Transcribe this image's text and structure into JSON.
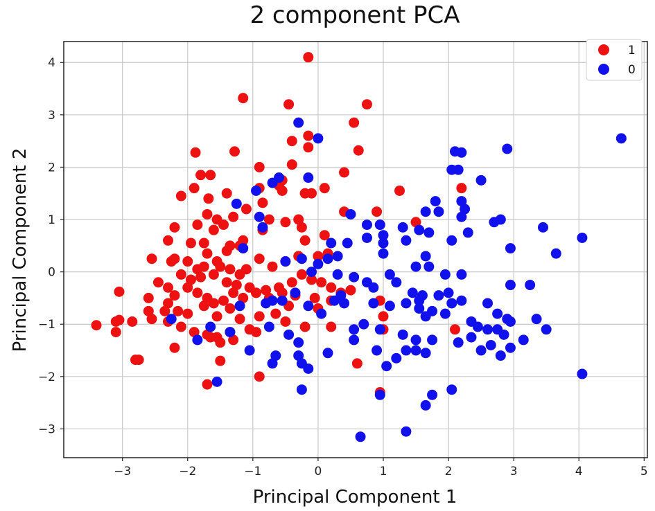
{
  "chart_data": {
    "type": "scatter",
    "title": "2 component PCA",
    "xlabel": "Principal Component 1",
    "ylabel": "Principal Component 2",
    "xlim": [
      -3.9,
      5.05
    ],
    "ylim": [
      -3.55,
      4.4
    ],
    "xticks": [
      -3,
      -2,
      -1,
      0,
      1,
      2,
      3,
      4,
      5
    ],
    "yticks": [
      -3,
      -2,
      -1,
      0,
      1,
      2,
      3,
      4
    ],
    "grid": true,
    "legend": {
      "placement": "top-right",
      "entries": [
        {
          "label": "1",
          "color": "#ee1111"
        },
        {
          "label": "0",
          "color": "#1111ee"
        }
      ]
    },
    "series": [
      {
        "name": "1",
        "color": "#ee1111",
        "points": [
          [
            -0.15,
            4.1
          ],
          [
            -1.15,
            3.32
          ],
          [
            -0.45,
            3.2
          ],
          [
            0.75,
            3.2
          ],
          [
            -0.15,
            2.6
          ],
          [
            -0.15,
            2.38
          ],
          [
            -0.4,
            2.5
          ],
          [
            0.55,
            2.85
          ],
          [
            0.62,
            2.32
          ],
          [
            -1.88,
            2.28
          ],
          [
            -1.28,
            2.3
          ],
          [
            -0.9,
            2.0
          ],
          [
            0.4,
            1.9
          ],
          [
            -0.4,
            2.05
          ],
          [
            -0.55,
            1.75
          ],
          [
            -1.8,
            1.85
          ],
          [
            -1.65,
            1.85
          ],
          [
            -1.9,
            1.6
          ],
          [
            -1.68,
            1.4
          ],
          [
            -2.1,
            1.45
          ],
          [
            -1.4,
            1.5
          ],
          [
            -1.1,
            1.2
          ],
          [
            -0.9,
            1.6
          ],
          [
            -0.55,
            1.55
          ],
          [
            -0.6,
            1.65
          ],
          [
            -0.2,
            1.5
          ],
          [
            -0.1,
            1.5
          ],
          [
            0.1,
            1.6
          ],
          [
            -0.85,
            1.32
          ],
          [
            -1.3,
            1.05
          ],
          [
            -1.55,
            1.0
          ],
          [
            -1.7,
            1.1
          ],
          [
            -1.85,
            0.9
          ],
          [
            -2.2,
            0.85
          ],
          [
            -1.45,
            0.9
          ],
          [
            -1.6,
            0.8
          ],
          [
            -1.35,
            0.5
          ],
          [
            -1.2,
            0.5
          ],
          [
            -1.15,
            0.6
          ],
          [
            -0.75,
            1.0
          ],
          [
            -0.85,
            0.8
          ],
          [
            -0.5,
            0.95
          ],
          [
            -0.3,
            1.0
          ],
          [
            -0.25,
            0.85
          ],
          [
            -0.2,
            0.6
          ],
          [
            0.1,
            0.7
          ],
          [
            0.4,
            1.15
          ],
          [
            0.9,
            1.15
          ],
          [
            0.95,
            0.9
          ],
          [
            1.25,
            1.55
          ],
          [
            1.5,
            0.95
          ],
          [
            2.2,
            1.6
          ],
          [
            -2.3,
            0.6
          ],
          [
            -1.95,
            0.55
          ],
          [
            -1.75,
            0.55
          ],
          [
            -1.7,
            0.35
          ],
          [
            -1.4,
            0.4
          ],
          [
            -1.55,
            0.2
          ],
          [
            -2.0,
            0.2
          ],
          [
            -2.2,
            0.25
          ],
          [
            -2.55,
            0.25
          ],
          [
            -2.25,
            0.2
          ],
          [
            -1.85,
            0.05
          ],
          [
            -1.75,
            0.1
          ],
          [
            -1.5,
            0.1
          ],
          [
            -1.35,
            0.05
          ],
          [
            -1.2,
            -0.05
          ],
          [
            -1.1,
            0.05
          ],
          [
            -0.9,
            0.25
          ],
          [
            -0.7,
            0.1
          ],
          [
            -0.5,
            0.2
          ],
          [
            -0.3,
            0.3
          ],
          [
            -0.25,
            -0.05
          ],
          [
            0.0,
            0.3
          ],
          [
            0.15,
            0.35
          ],
          [
            -2.1,
            -0.05
          ],
          [
            -1.95,
            -0.15
          ],
          [
            -1.8,
            -0.1
          ],
          [
            -1.6,
            -0.05
          ],
          [
            -1.4,
            -0.2
          ],
          [
            -1.25,
            -0.25
          ],
          [
            -1.05,
            -0.3
          ],
          [
            -0.95,
            -0.4
          ],
          [
            -0.8,
            -0.35
          ],
          [
            -0.6,
            -0.3
          ],
          [
            -0.4,
            -0.2
          ],
          [
            -0.1,
            -0.15
          ],
          [
            0.05,
            -0.2
          ],
          [
            0.2,
            -0.3
          ],
          [
            -2.45,
            -0.2
          ],
          [
            -2.3,
            -0.3
          ],
          [
            -2.2,
            -0.45
          ],
          [
            -2.0,
            -0.3
          ],
          [
            -1.85,
            -0.4
          ],
          [
            -1.7,
            -0.5
          ],
          [
            -1.6,
            -0.6
          ],
          [
            -1.45,
            -0.55
          ],
          [
            -1.3,
            -0.4
          ],
          [
            -1.15,
            -0.5
          ],
          [
            -0.95,
            -0.4
          ],
          [
            -0.75,
            -0.5
          ],
          [
            -0.55,
            -0.4
          ],
          [
            -0.35,
            -0.45
          ],
          [
            -0.05,
            -0.5
          ],
          [
            0.2,
            -0.55
          ],
          [
            -3.05,
            -0.38
          ],
          [
            -2.6,
            -0.5
          ],
          [
            -2.3,
            -0.6
          ],
          [
            -2.15,
            -0.75
          ],
          [
            -2.35,
            -0.75
          ],
          [
            -2.0,
            -0.8
          ],
          [
            -1.75,
            -0.65
          ],
          [
            -1.55,
            -0.85
          ],
          [
            -1.35,
            -0.7
          ],
          [
            -1.2,
            -0.9
          ],
          [
            -0.9,
            -0.85
          ],
          [
            -0.65,
            -0.8
          ],
          [
            -0.45,
            -0.65
          ],
          [
            0.0,
            -0.7
          ],
          [
            0.35,
            -0.4
          ],
          [
            -3.4,
            -1.02
          ],
          [
            -3.1,
            -0.95
          ],
          [
            -3.1,
            -1.15
          ],
          [
            -3.05,
            -0.92
          ],
          [
            -2.85,
            -0.95
          ],
          [
            -2.6,
            -0.75
          ],
          [
            -2.55,
            -0.9
          ],
          [
            -2.3,
            -0.95
          ],
          [
            -2.1,
            -1.05
          ],
          [
            -1.9,
            -1.15
          ],
          [
            -1.7,
            -1.2
          ],
          [
            -1.55,
            -1.25
          ],
          [
            -1.35,
            -1.15
          ],
          [
            -1.05,
            -1.1
          ],
          [
            -0.5,
            -0.95
          ],
          [
            -0.2,
            -1.05
          ],
          [
            0.2,
            -1.05
          ],
          [
            -2.75,
            -1.68
          ],
          [
            -2.8,
            -1.68
          ],
          [
            -2.2,
            -1.45
          ],
          [
            -1.65,
            -1.25
          ],
          [
            -1.5,
            -1.35
          ],
          [
            -1.3,
            -1.3
          ],
          [
            -0.95,
            -1.15
          ],
          [
            0.6,
            -1.75
          ],
          [
            -1.5,
            -1.7
          ],
          [
            -1.7,
            -2.15
          ],
          [
            -0.9,
            -2.0
          ],
          [
            0.95,
            -2.3
          ],
          [
            1.0,
            -1.1
          ],
          [
            2.1,
            -1.1
          ],
          [
            0.95,
            -0.55
          ],
          [
            1.0,
            -0.85
          ],
          [
            0.5,
            -0.35
          ]
        ]
      },
      {
        "name": "0",
        "color": "#1111ee",
        "points": [
          [
            -0.3,
            2.85
          ],
          [
            0.0,
            2.55
          ],
          [
            4.65,
            2.55
          ],
          [
            -0.15,
            1.8
          ],
          [
            -0.95,
            1.55
          ],
          [
            -0.6,
            1.8
          ],
          [
            -0.7,
            1.7
          ],
          [
            2.1,
            2.3
          ],
          [
            2.2,
            2.28
          ],
          [
            2.9,
            2.35
          ],
          [
            2.05,
            1.95
          ],
          [
            2.15,
            1.95
          ],
          [
            2.5,
            1.75
          ],
          [
            2.2,
            1.35
          ],
          [
            2.25,
            1.2
          ],
          [
            1.8,
            1.35
          ],
          [
            1.65,
            1.15
          ],
          [
            1.85,
            1.15
          ],
          [
            2.2,
            1.05
          ],
          [
            2.7,
            0.95
          ],
          [
            2.8,
            1.0
          ],
          [
            3.45,
            0.85
          ],
          [
            4.05,
            0.65
          ],
          [
            0.5,
            1.1
          ],
          [
            0.75,
            0.9
          ],
          [
            0.95,
            0.9
          ],
          [
            1.0,
            0.7
          ],
          [
            1.3,
            0.85
          ],
          [
            1.55,
            0.8
          ],
          [
            1.7,
            0.75
          ],
          [
            2.05,
            0.6
          ],
          [
            2.3,
            0.75
          ],
          [
            2.95,
            0.45
          ],
          [
            3.65,
            0.35
          ],
          [
            -1.25,
            1.3
          ],
          [
            -1.15,
            0.45
          ],
          [
            -0.9,
            1.05
          ],
          [
            -0.85,
            0.85
          ],
          [
            0.2,
            0.55
          ],
          [
            0.45,
            0.55
          ],
          [
            0.75,
            0.65
          ],
          [
            1.0,
            0.55
          ],
          [
            1.35,
            0.6
          ],
          [
            1.65,
            0.3
          ],
          [
            0.3,
            0.3
          ],
          [
            0.0,
            0.15
          ],
          [
            0.15,
            0.25
          ],
          [
            -0.5,
            0.2
          ],
          [
            -0.25,
            0.25
          ],
          [
            -0.1,
            0.0
          ],
          [
            1.0,
            0.35
          ],
          [
            1.5,
            0.1
          ],
          [
            1.7,
            0.1
          ],
          [
            1.95,
            -0.05
          ],
          [
            2.2,
            -0.05
          ],
          [
            2.95,
            -0.25
          ],
          [
            3.25,
            -0.25
          ],
          [
            0.3,
            -0.05
          ],
          [
            0.55,
            -0.1
          ],
          [
            0.75,
            -0.2
          ],
          [
            1.1,
            -0.05
          ],
          [
            1.2,
            -0.2
          ],
          [
            1.45,
            -0.4
          ],
          [
            1.6,
            -0.45
          ],
          [
            1.85,
            -0.45
          ],
          [
            2.0,
            -0.4
          ],
          [
            0.35,
            -0.45
          ],
          [
            0.85,
            -0.3
          ],
          [
            1.1,
            -0.65
          ],
          [
            1.35,
            -0.6
          ],
          [
            1.55,
            -0.55
          ],
          [
            1.75,
            -0.75
          ],
          [
            2.05,
            -0.6
          ],
          [
            2.2,
            -0.55
          ],
          [
            2.6,
            -0.6
          ],
          [
            0.4,
            -0.6
          ],
          [
            0.85,
            -0.6
          ],
          [
            1.55,
            -0.7
          ],
          [
            1.65,
            -0.85
          ],
          [
            1.95,
            -0.8
          ],
          [
            2.35,
            -0.95
          ],
          [
            2.75,
            -0.8
          ],
          [
            2.9,
            -0.9
          ],
          [
            -0.35,
            -0.4
          ],
          [
            -0.55,
            -0.55
          ],
          [
            -0.7,
            -0.55
          ],
          [
            -0.8,
            -0.6
          ],
          [
            -1.2,
            -0.65
          ],
          [
            -0.15,
            -0.65
          ],
          [
            0.05,
            -0.8
          ],
          [
            0.25,
            -0.55
          ],
          [
            -2.25,
            -0.9
          ],
          [
            -1.65,
            -1.05
          ],
          [
            -1.35,
            -1.15
          ],
          [
            -0.75,
            -1.05
          ],
          [
            -0.45,
            -1.2
          ],
          [
            -0.3,
            -1.35
          ],
          [
            0.55,
            -1.1
          ],
          [
            0.7,
            -1.0
          ],
          [
            0.95,
            -1.1
          ],
          [
            1.3,
            -1.2
          ],
          [
            1.5,
            -1.3
          ],
          [
            1.75,
            -1.3
          ],
          [
            2.15,
            -1.35
          ],
          [
            2.35,
            -1.25
          ],
          [
            2.45,
            -1.05
          ],
          [
            2.6,
            -1.1
          ],
          [
            2.75,
            -1.1
          ],
          [
            2.85,
            -1.2
          ],
          [
            2.95,
            -0.95
          ],
          [
            3.35,
            -0.9
          ],
          [
            3.5,
            -1.1
          ],
          [
            -1.85,
            -1.3
          ],
          [
            -1.05,
            -1.5
          ],
          [
            -0.65,
            -1.6
          ],
          [
            -0.3,
            -1.6
          ],
          [
            0.15,
            -1.55
          ],
          [
            0.55,
            -1.3
          ],
          [
            0.9,
            -1.5
          ],
          [
            1.2,
            -1.65
          ],
          [
            1.35,
            -1.5
          ],
          [
            1.5,
            -1.5
          ],
          [
            1.65,
            -1.55
          ],
          [
            2.5,
            -1.5
          ],
          [
            2.65,
            -1.4
          ],
          [
            2.8,
            -1.6
          ],
          [
            2.95,
            -1.45
          ],
          [
            3.15,
            -1.3
          ],
          [
            -0.7,
            -1.75
          ],
          [
            -0.25,
            -1.75
          ],
          [
            -0.15,
            -1.85
          ],
          [
            1.05,
            -1.8
          ],
          [
            -1.55,
            -2.1
          ],
          [
            -0.25,
            -2.25
          ],
          [
            0.95,
            -2.35
          ],
          [
            1.65,
            -2.55
          ],
          [
            1.75,
            -2.35
          ],
          [
            2.05,
            -2.25
          ],
          [
            4.05,
            -1.95
          ],
          [
            0.65,
            -3.15
          ],
          [
            1.35,
            -3.05
          ]
        ]
      }
    ]
  }
}
